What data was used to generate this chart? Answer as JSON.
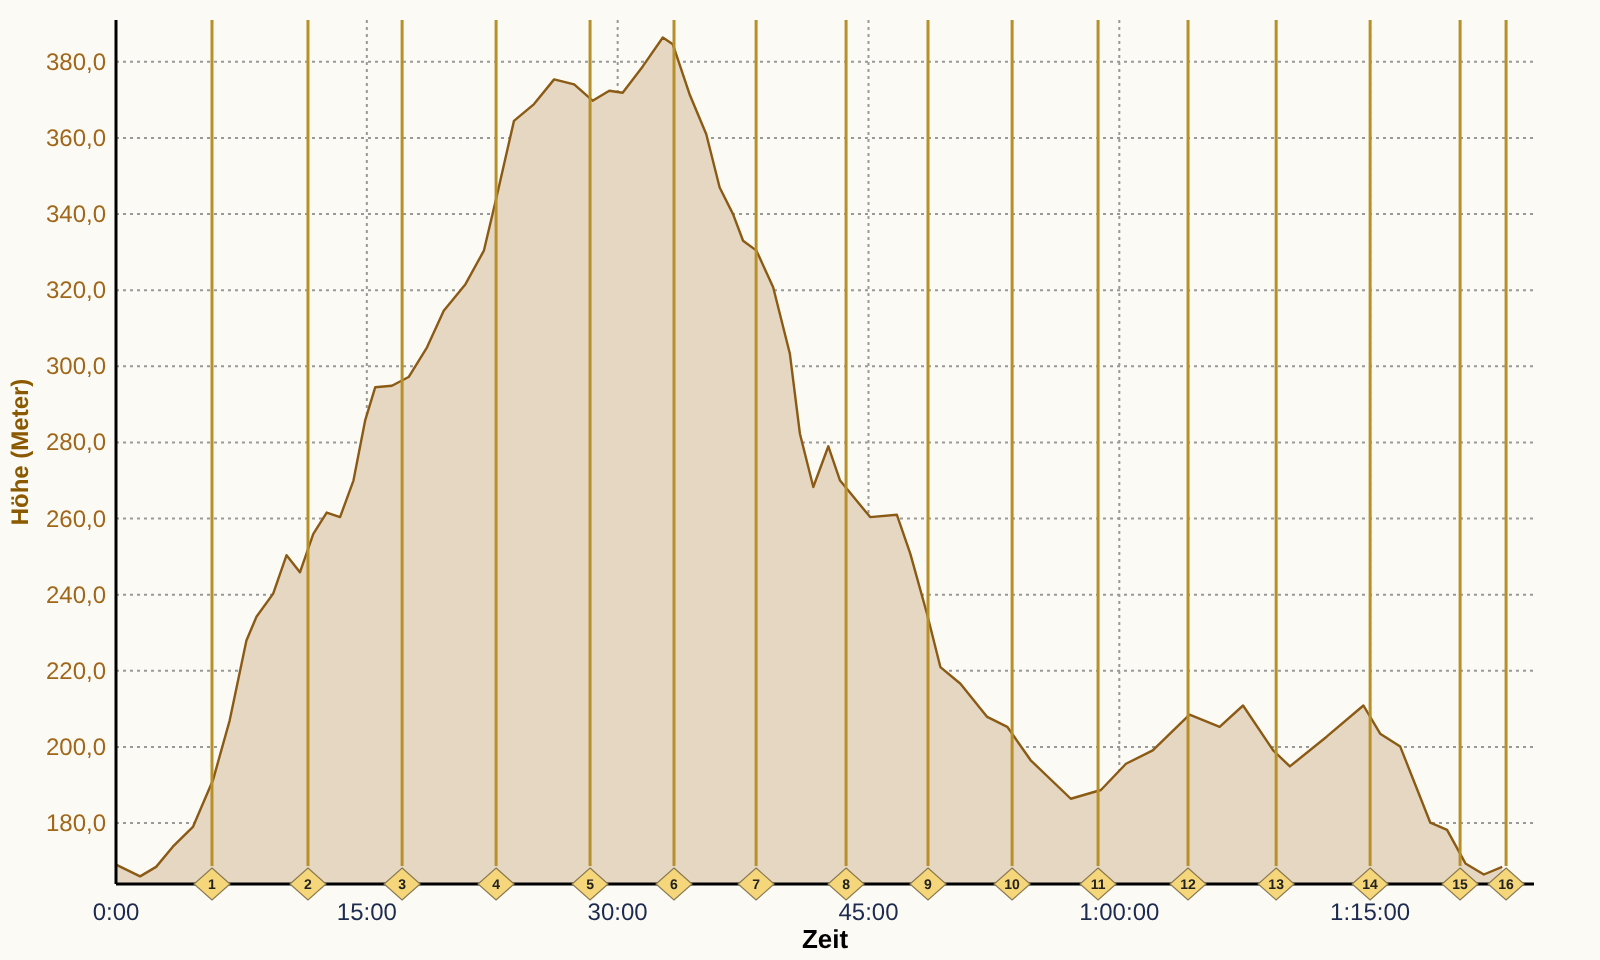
{
  "chart_data": {
    "type": "area",
    "xlabel": "Zeit",
    "ylabel": "Höhe (Meter)",
    "x": [
      0,
      1.44,
      2.4,
      3.4,
      4.6,
      5.8,
      6.8,
      7.8,
      8.4,
      9.4,
      10.2,
      11.0,
      11.8,
      12.6,
      13.4,
      14.2,
      14.9,
      15.5,
      16.5,
      17.5,
      18.6,
      19.6,
      20.9,
      22.0,
      22.8,
      23.8,
      25.0,
      26.2,
      27.4,
      28.5,
      29.5,
      30.3,
      31.5,
      32.7,
      33.3,
      34.3,
      35.3,
      36.1,
      36.9,
      37.5,
      38.3,
      39.3,
      40.3,
      40.9,
      41.7,
      42.6,
      43.3,
      45.1,
      46.7,
      47.5,
      48.5,
      49.3,
      50.5,
      52.1,
      53.3,
      54.7,
      57.1,
      58.9,
      60.4,
      62.0,
      64.2,
      66.0,
      67.4,
      69.2,
      70.2,
      72.4,
      74.6,
      75.6,
      76.8,
      78.6,
      79.6,
      80.7,
      81.8,
      82.9
    ],
    "series": [
      {
        "color": "#8b5a14",
        "values": [
          169.1,
          166.0,
          168.5,
          173.8,
          179.0,
          191.3,
          207.0,
          228.0,
          234.2,
          240.3,
          250.4,
          245.9,
          256.0,
          261.6,
          260.4,
          270.0,
          285.8,
          294.5,
          294.9,
          297.2,
          305.0,
          314.6,
          321.6,
          330.4,
          345.3,
          364.5,
          368.9,
          375.4,
          374.1,
          369.8,
          372.4,
          371.9,
          378.8,
          386.4,
          384.6,
          371.5,
          361.0,
          347.0,
          340.0,
          333.0,
          330.4,
          320.8,
          303.3,
          282.3,
          268.3,
          279.0,
          270.0,
          260.4,
          261.0,
          250.8,
          235.0,
          221.0,
          216.6,
          207.9,
          205.3,
          196.5,
          186.4,
          188.7,
          195.6,
          199.1,
          208.5,
          205.3,
          210.9,
          199.1,
          194.9,
          202.7,
          210.9,
          203.5,
          200.1,
          180.1,
          178.2,
          169.4,
          166.5,
          168.5
        ]
      }
    ],
    "xlim": [
      0,
      84.8
    ],
    "ylim": [
      164,
      391
    ],
    "xticks": [
      {
        "value": 0,
        "label": "0:00"
      },
      {
        "value": 15,
        "label": "15:00"
      },
      {
        "value": 30,
        "label": "30:00"
      },
      {
        "value": 45,
        "label": "45:00"
      },
      {
        "value": 60,
        "label": "1:00:00"
      },
      {
        "value": 75,
        "label": "1:15:00"
      }
    ],
    "yticks": [
      {
        "value": 180,
        "label": "180,0"
      },
      {
        "value": 200,
        "label": "200,0"
      },
      {
        "value": 220,
        "label": "220,0"
      },
      {
        "value": 240,
        "label": "240,0"
      },
      {
        "value": 260,
        "label": "260,0"
      },
      {
        "value": 280,
        "label": "280,0"
      },
      {
        "value": 300,
        "label": "300,0"
      },
      {
        "value": 320,
        "label": "320,0"
      },
      {
        "value": 340,
        "label": "340,0"
      },
      {
        "value": 360,
        "label": "360,0"
      },
      {
        "value": 380,
        "label": "380,0"
      }
    ],
    "grid": true,
    "ref_lines": [
      {
        "axis": "x",
        "value": 5.74,
        "color": "#b8902a"
      },
      {
        "axis": "x",
        "value": 11.48,
        "color": "#b8902a"
      },
      {
        "axis": "x",
        "value": 17.11,
        "color": "#b8902a"
      },
      {
        "axis": "x",
        "value": 22.73,
        "color": "#b8902a"
      },
      {
        "axis": "x",
        "value": 28.35,
        "color": "#b8902a"
      },
      {
        "axis": "x",
        "value": 33.37,
        "color": "#b8902a"
      },
      {
        "axis": "x",
        "value": 38.28,
        "color": "#b8902a"
      },
      {
        "axis": "x",
        "value": 43.66,
        "color": "#b8902a"
      },
      {
        "axis": "x",
        "value": 48.56,
        "color": "#b8902a"
      },
      {
        "axis": "x",
        "value": 53.59,
        "color": "#b8902a"
      },
      {
        "axis": "x",
        "value": 58.73,
        "color": "#b8902a"
      },
      {
        "axis": "x",
        "value": 64.11,
        "color": "#b8902a"
      },
      {
        "axis": "x",
        "value": 69.38,
        "color": "#b8902a"
      },
      {
        "axis": "x",
        "value": 75.0,
        "color": "#b8902a"
      },
      {
        "axis": "x",
        "value": 80.38,
        "color": "#b8902a"
      },
      {
        "axis": "x",
        "value": 83.13,
        "color": "#b8902a"
      }
    ],
    "annotations": [
      {
        "text": "1",
        "x": 5.74,
        "y": 164
      },
      {
        "text": "2",
        "x": 11.48,
        "y": 164
      },
      {
        "text": "3",
        "x": 17.11,
        "y": 164
      },
      {
        "text": "4",
        "x": 22.73,
        "y": 164
      },
      {
        "text": "5",
        "x": 28.35,
        "y": 164
      },
      {
        "text": "6",
        "x": 33.37,
        "y": 164
      },
      {
        "text": "7",
        "x": 38.28,
        "y": 164
      },
      {
        "text": "8",
        "x": 43.66,
        "y": 164
      },
      {
        "text": "9",
        "x": 48.56,
        "y": 164
      },
      {
        "text": "10",
        "x": 53.59,
        "y": 164
      },
      {
        "text": "11",
        "x": 58.73,
        "y": 164
      },
      {
        "text": "12",
        "x": 64.11,
        "y": 164
      },
      {
        "text": "13",
        "x": 69.38,
        "y": 164
      },
      {
        "text": "14",
        "x": 75.0,
        "y": 164
      },
      {
        "text": "15",
        "x": 80.38,
        "y": 164
      },
      {
        "text": "16",
        "x": 83.13,
        "y": 164
      }
    ]
  }
}
